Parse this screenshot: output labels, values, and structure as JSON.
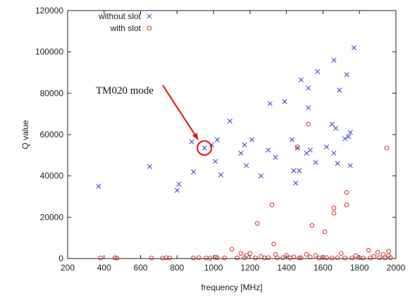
{
  "chart_data": {
    "type": "scatter",
    "xlabel": "frequency [MHz]",
    "ylabel": "Q value",
    "xlim": [
      200,
      2000
    ],
    "ylim": [
      0,
      120000
    ],
    "xticks": [
      200,
      400,
      600,
      800,
      1000,
      1200,
      1400,
      1600,
      1800,
      2000
    ],
    "yticks": [
      0,
      20000,
      40000,
      60000,
      80000,
      100000,
      120000
    ],
    "grid": false,
    "legend_position": "top-left",
    "series": [
      {
        "name": "without slot",
        "marker": "x",
        "color": "#3b3bd6",
        "points": [
          [
            370,
            35000
          ],
          [
            650,
            44500
          ],
          [
            800,
            33000
          ],
          [
            810,
            36000
          ],
          [
            880,
            56500
          ],
          [
            890,
            42000
          ],
          [
            950,
            53500
          ],
          [
            990,
            55000
          ],
          [
            1010,
            47000
          ],
          [
            1020,
            57500
          ],
          [
            1040,
            40500
          ],
          [
            1090,
            66500
          ],
          [
            1150,
            51000
          ],
          [
            1170,
            55000
          ],
          [
            1180,
            45000
          ],
          [
            1210,
            57500
          ],
          [
            1260,
            40000
          ],
          [
            1300,
            52500
          ],
          [
            1310,
            75000
          ],
          [
            1340,
            49000
          ],
          [
            1390,
            76000
          ],
          [
            1430,
            57500
          ],
          [
            1440,
            42500
          ],
          [
            1450,
            36500
          ],
          [
            1460,
            53500
          ],
          [
            1470,
            42500
          ],
          [
            1480,
            86500
          ],
          [
            1510,
            51000
          ],
          [
            1520,
            73000
          ],
          [
            1520,
            82500
          ],
          [
            1530,
            52500
          ],
          [
            1560,
            46500
          ],
          [
            1570,
            90500
          ],
          [
            1620,
            54000
          ],
          [
            1650,
            65000
          ],
          [
            1660,
            51000
          ],
          [
            1660,
            96000
          ],
          [
            1670,
            63000
          ],
          [
            1680,
            46000
          ],
          [
            1690,
            81500
          ],
          [
            1720,
            58000
          ],
          [
            1730,
            89000
          ],
          [
            1740,
            59000
          ],
          [
            1750,
            61000
          ],
          [
            1750,
            45000
          ],
          [
            1770,
            102000
          ]
        ]
      },
      {
        "name": "with slot",
        "marker": "o",
        "color": "#d93030",
        "points": [
          [
            380,
            300
          ],
          [
            460,
            400
          ],
          [
            470,
            200
          ],
          [
            660,
            300
          ],
          [
            720,
            200
          ],
          [
            740,
            400
          ],
          [
            760,
            300
          ],
          [
            890,
            300
          ],
          [
            920,
            400
          ],
          [
            960,
            300
          ],
          [
            980,
            200
          ],
          [
            1010,
            600
          ],
          [
            1020,
            400
          ],
          [
            1060,
            300
          ],
          [
            1100,
            4500
          ],
          [
            1130,
            300
          ],
          [
            1150,
            2500
          ],
          [
            1170,
            400
          ],
          [
            1180,
            1500
          ],
          [
            1200,
            2500
          ],
          [
            1230,
            300
          ],
          [
            1240,
            17000
          ],
          [
            1260,
            1000
          ],
          [
            1280,
            300
          ],
          [
            1300,
            400
          ],
          [
            1320,
            26000
          ],
          [
            1330,
            7000
          ],
          [
            1340,
            2000
          ],
          [
            1350,
            300
          ],
          [
            1380,
            400
          ],
          [
            1400,
            1500
          ],
          [
            1420,
            300
          ],
          [
            1440,
            800
          ],
          [
            1460,
            54000
          ],
          [
            1470,
            300
          ],
          [
            1480,
            400
          ],
          [
            1510,
            2000
          ],
          [
            1520,
            65000
          ],
          [
            1530,
            800
          ],
          [
            1540,
            16000
          ],
          [
            1560,
            1500
          ],
          [
            1580,
            300
          ],
          [
            1600,
            600
          ],
          [
            1610,
            13000
          ],
          [
            1620,
            400
          ],
          [
            1650,
            300
          ],
          [
            1660,
            24500
          ],
          [
            1660,
            22000
          ],
          [
            1680,
            400
          ],
          [
            1700,
            2500
          ],
          [
            1720,
            300
          ],
          [
            1730,
            32000
          ],
          [
            1730,
            26000
          ],
          [
            1760,
            300
          ],
          [
            1780,
            1500
          ],
          [
            1800,
            400
          ],
          [
            1820,
            300
          ],
          [
            1850,
            4000
          ],
          [
            1860,
            300
          ],
          [
            1880,
            1000
          ],
          [
            1900,
            3000
          ],
          [
            1910,
            400
          ],
          [
            1930,
            2000
          ],
          [
            1940,
            300
          ],
          [
            1950,
            53500
          ],
          [
            1960,
            3500
          ],
          [
            1960,
            1500
          ],
          [
            1970,
            400
          ]
        ]
      }
    ],
    "annotations": [
      {
        "text": "TM020 mode",
        "target": [
          950,
          53500
        ]
      }
    ]
  }
}
